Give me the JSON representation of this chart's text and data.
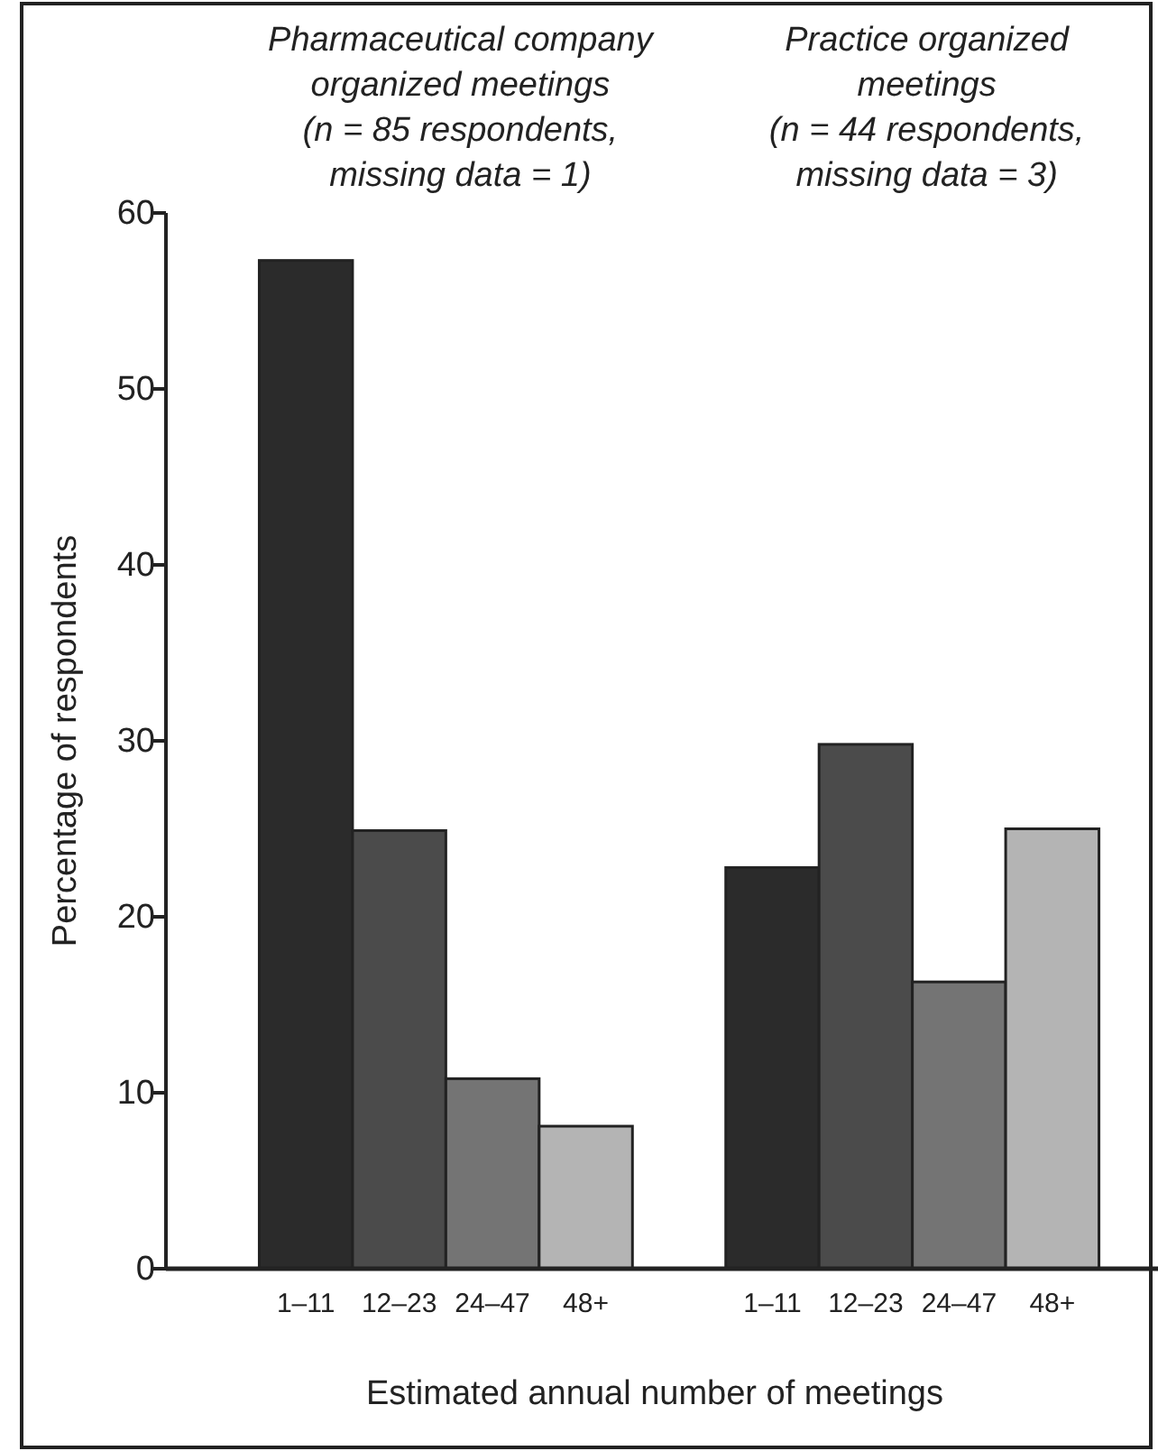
{
  "chart_data": {
    "type": "bar",
    "xlabel": "Estimated annual number of meetings",
    "ylabel": "Percentage of respondents",
    "categories": [
      "1–11",
      "12–23",
      "24–47",
      "48+",
      null,
      "1–11",
      "12–23",
      "24–47",
      "48+"
    ],
    "values": [
      57.3,
      24.9,
      10.8,
      8.1,
      null,
      22.8,
      29.8,
      16.3,
      25.0
    ],
    "colors": [
      "#2b2b2b",
      "#4b4b4b",
      "#747474",
      "#b4b4b4",
      null,
      "#2b2b2b",
      "#4b4b4b",
      "#747474",
      "#b4b4b4"
    ],
    "ylim": [
      0,
      60
    ],
    "yticks": [
      0,
      10,
      20,
      30,
      40,
      50,
      60
    ],
    "grid": false,
    "annotations": [
      "Pharmaceutical company\norganized meetings\n(n = 85 respondents,\nmissing data = 1)",
      "Practice organized\nmeetings\n(n = 44 respondents,\nmissing data = 3)"
    ]
  }
}
